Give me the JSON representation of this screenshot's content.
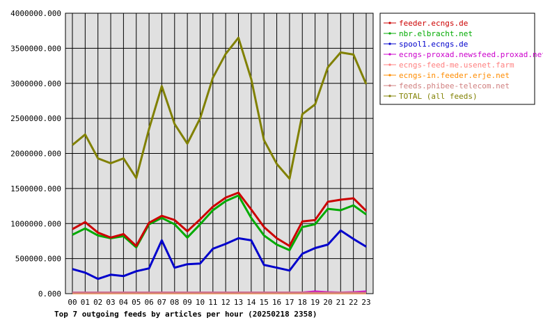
{
  "chart_data": {
    "type": "line",
    "title": "Top 7 outgoing feeds by articles per hour (20250218 2358)",
    "xlabel": "",
    "ylabel": "",
    "x": [
      "00",
      "01",
      "02",
      "03",
      "04",
      "05",
      "06",
      "07",
      "08",
      "09",
      "10",
      "11",
      "12",
      "13",
      "14",
      "15",
      "16",
      "17",
      "18",
      "19",
      "20",
      "21",
      "22",
      "23"
    ],
    "yticks": [
      "0.000",
      "500000.000",
      "1000000.000",
      "1500000.000",
      "2000000.000",
      "2500000.000",
      "3000000.000",
      "3500000.000",
      "4000000.000"
    ],
    "ylim": [
      0,
      4000000
    ],
    "grid": true,
    "legend_position": "top-right",
    "series": [
      {
        "name": "feeder.ecngs.de",
        "color": "#cc0000",
        "values": [
          920000,
          1020000,
          870000,
          800000,
          850000,
          680000,
          1010000,
          1110000,
          1050000,
          890000,
          1060000,
          1240000,
          1370000,
          1440000,
          1200000,
          950000,
          790000,
          680000,
          1030000,
          1050000,
          1310000,
          1340000,
          1360000,
          1180000
        ]
      },
      {
        "name": "nbr.elbracht.net",
        "color": "#00aa00",
        "values": [
          840000,
          930000,
          830000,
          790000,
          820000,
          660000,
          990000,
          1080000,
          990000,
          800000,
          990000,
          1190000,
          1320000,
          1400000,
          1080000,
          830000,
          700000,
          620000,
          950000,
          990000,
          1210000,
          1190000,
          1260000,
          1130000
        ]
      },
      {
        "name": "spool1.ecngs.de",
        "color": "#0000cc",
        "values": [
          350000,
          300000,
          210000,
          270000,
          250000,
          320000,
          360000,
          760000,
          370000,
          420000,
          430000,
          640000,
          710000,
          790000,
          760000,
          410000,
          370000,
          330000,
          570000,
          650000,
          700000,
          900000,
          780000,
          670000
        ]
      },
      {
        "name": "ecngs-proxad.newsfeed.proxad.net",
        "color": "#cc00cc",
        "values": [
          15000,
          15000,
          15000,
          15000,
          15000,
          15000,
          15000,
          15000,
          15000,
          15000,
          15000,
          15000,
          15000,
          15000,
          15000,
          15000,
          15000,
          15000,
          15000,
          30000,
          20000,
          15000,
          20000,
          30000
        ]
      },
      {
        "name": "ecngs-feed-me.usenet.farm",
        "color": "#ff8080",
        "values": [
          10000,
          10000,
          10000,
          10000,
          10000,
          10000,
          10000,
          10000,
          10000,
          10000,
          10000,
          10000,
          10000,
          10000,
          10000,
          10000,
          10000,
          10000,
          10000,
          10000,
          10000,
          10000,
          10000,
          10000
        ]
      },
      {
        "name": "ecngs-in.feeder.erje.net",
        "color": "#ff8c00",
        "values": [
          8000,
          8000,
          8000,
          8000,
          8000,
          8000,
          8000,
          8000,
          8000,
          8000,
          8000,
          8000,
          8000,
          8000,
          8000,
          8000,
          8000,
          8000,
          8000,
          8000,
          8000,
          8000,
          8000,
          8000
        ]
      },
      {
        "name": "feeds.phibee-telecom.net",
        "color": "#d08080",
        "values": [
          12000,
          12000,
          12000,
          12000,
          12000,
          12000,
          12000,
          12000,
          12000,
          12000,
          12000,
          12000,
          12000,
          12000,
          12000,
          12000,
          12000,
          12000,
          12000,
          12000,
          12000,
          12000,
          12000,
          12000
        ]
      },
      {
        "name": "TOTAL (all feeds)",
        "color": "#808000",
        "values": [
          2120000,
          2270000,
          1930000,
          1860000,
          1930000,
          1650000,
          2350000,
          2960000,
          2420000,
          2140000,
          2500000,
          3080000,
          3420000,
          3650000,
          3060000,
          2190000,
          1850000,
          1640000,
          2560000,
          2700000,
          3230000,
          3440000,
          3410000,
          2990000
        ]
      }
    ]
  }
}
